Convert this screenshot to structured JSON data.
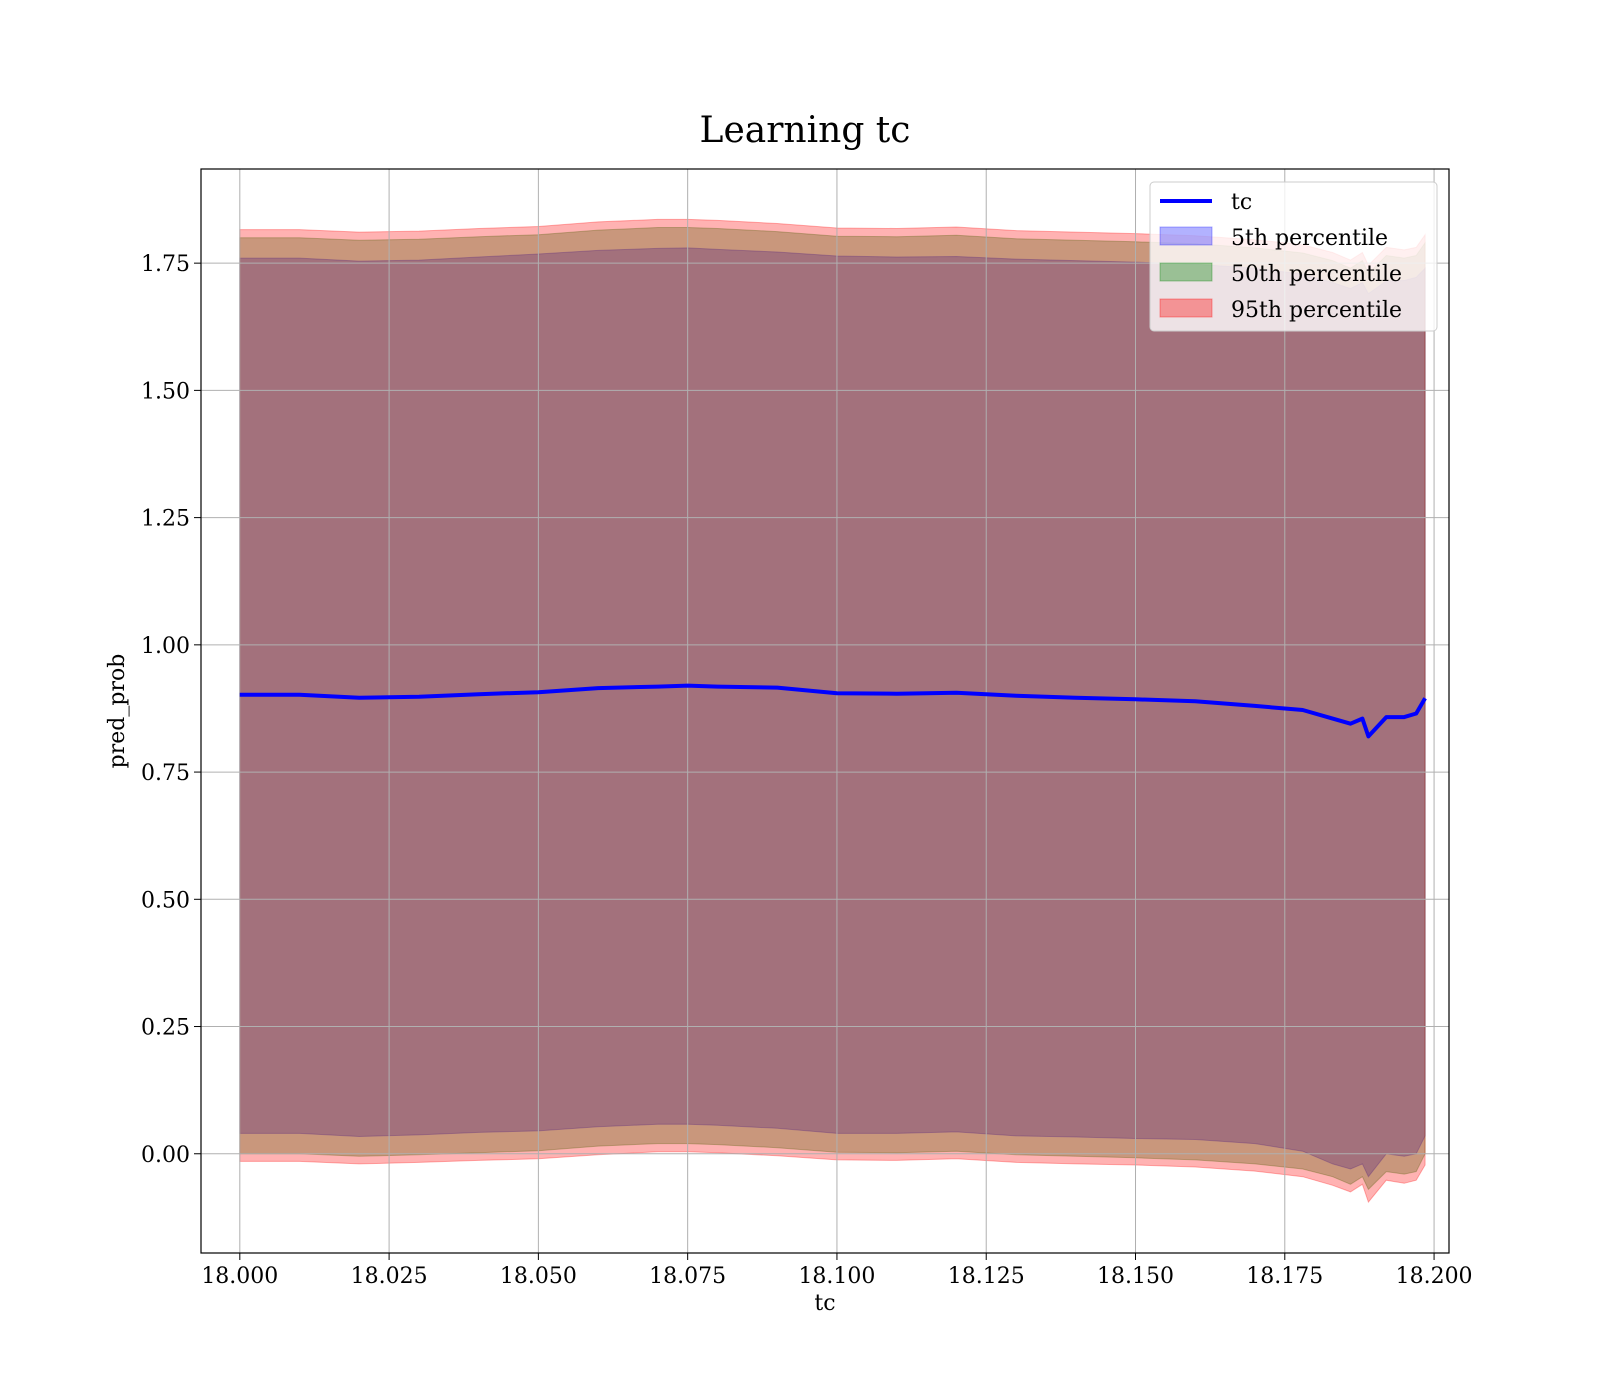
{
  "chart_data": {
    "type": "area",
    "title": "Learning tc",
    "xlabel": "tc",
    "ylabel": "pred_prob",
    "xlim": [
      17.9935,
      18.2025
    ],
    "ylim": [
      -0.195,
      1.935
    ],
    "xticks": [
      18.0,
      18.025,
      18.05,
      18.075,
      18.1,
      18.125,
      18.15,
      18.175,
      18.2
    ],
    "xtick_labels": [
      "18.000",
      "18.025",
      "18.050",
      "18.075",
      "18.100",
      "18.125",
      "18.150",
      "18.175",
      "18.200"
    ],
    "yticks": [
      0.0,
      0.25,
      0.5,
      0.75,
      1.0,
      1.25,
      1.5,
      1.75
    ],
    "ytick_labels": [
      "0.00",
      "0.25",
      "0.50",
      "0.75",
      "1.00",
      "1.25",
      "1.50",
      "1.75"
    ],
    "grid": true,
    "legend_position": "top-right",
    "x": [
      18.0,
      18.01,
      18.02,
      18.03,
      18.04,
      18.05,
      18.06,
      18.07,
      18.075,
      18.08,
      18.09,
      18.1,
      18.11,
      18.12,
      18.13,
      18.14,
      18.15,
      18.16,
      18.17,
      18.178,
      18.183,
      18.186,
      18.188,
      18.189,
      18.192,
      18.195,
      18.197,
      18.1985
    ],
    "series": [
      {
        "name": "tc",
        "kind": "line",
        "color": "#0000ff",
        "values": [
          0.902,
          0.902,
          0.896,
          0.898,
          0.903,
          0.907,
          0.915,
          0.918,
          0.92,
          0.918,
          0.916,
          0.905,
          0.904,
          0.906,
          0.9,
          0.896,
          0.893,
          0.889,
          0.88,
          0.872,
          0.855,
          0.845,
          0.855,
          0.82,
          0.858,
          0.858,
          0.865,
          0.895
        ]
      },
      {
        "name": "5th percentile",
        "kind": "band",
        "color": "#0000ff",
        "lower": [
          0.04,
          0.04,
          0.034,
          0.037,
          0.042,
          0.045,
          0.053,
          0.058,
          0.058,
          0.056,
          0.05,
          0.04,
          0.04,
          0.043,
          0.035,
          0.033,
          0.03,
          0.028,
          0.02,
          0.005,
          -0.02,
          -0.03,
          -0.02,
          -0.045,
          0.0,
          -0.005,
          0.0,
          0.035
        ],
        "upper": [
          1.76,
          1.76,
          1.754,
          1.756,
          1.762,
          1.768,
          1.775,
          1.779,
          1.78,
          1.777,
          1.772,
          1.764,
          1.762,
          1.763,
          1.758,
          1.755,
          1.752,
          1.748,
          1.74,
          1.728,
          1.712,
          1.7,
          1.712,
          1.69,
          1.715,
          1.716,
          1.722,
          1.74
        ]
      },
      {
        "name": "50th percentile",
        "kind": "band",
        "color": "#008000",
        "lower": [
          0.0,
          0.0,
          -0.005,
          -0.002,
          0.002,
          0.006,
          0.015,
          0.02,
          0.02,
          0.018,
          0.012,
          0.003,
          0.002,
          0.005,
          -0.002,
          -0.005,
          -0.008,
          -0.012,
          -0.02,
          -0.03,
          -0.045,
          -0.06,
          -0.045,
          -0.07,
          -0.035,
          -0.04,
          -0.035,
          0.0
        ],
        "upper": [
          1.8,
          1.8,
          1.795,
          1.797,
          1.802,
          1.806,
          1.815,
          1.82,
          1.82,
          1.818,
          1.812,
          1.803,
          1.802,
          1.805,
          1.798,
          1.795,
          1.792,
          1.788,
          1.78,
          1.77,
          1.755,
          1.74,
          1.755,
          1.73,
          1.765,
          1.76,
          1.765,
          1.79
        ]
      },
      {
        "name": "95th percentile",
        "kind": "band",
        "color": "#ff0000",
        "lower": [
          -0.015,
          -0.015,
          -0.02,
          -0.017,
          -0.013,
          -0.01,
          -0.002,
          0.004,
          0.004,
          0.002,
          -0.004,
          -0.012,
          -0.013,
          -0.01,
          -0.017,
          -0.02,
          -0.022,
          -0.026,
          -0.034,
          -0.045,
          -0.062,
          -0.075,
          -0.06,
          -0.095,
          -0.052,
          -0.058,
          -0.052,
          -0.022
        ],
        "upper": [
          1.816,
          1.816,
          1.811,
          1.813,
          1.818,
          1.822,
          1.831,
          1.836,
          1.836,
          1.834,
          1.828,
          1.819,
          1.818,
          1.821,
          1.814,
          1.811,
          1.808,
          1.804,
          1.796,
          1.786,
          1.771,
          1.756,
          1.771,
          1.746,
          1.781,
          1.776,
          1.781,
          1.806
        ]
      }
    ]
  }
}
